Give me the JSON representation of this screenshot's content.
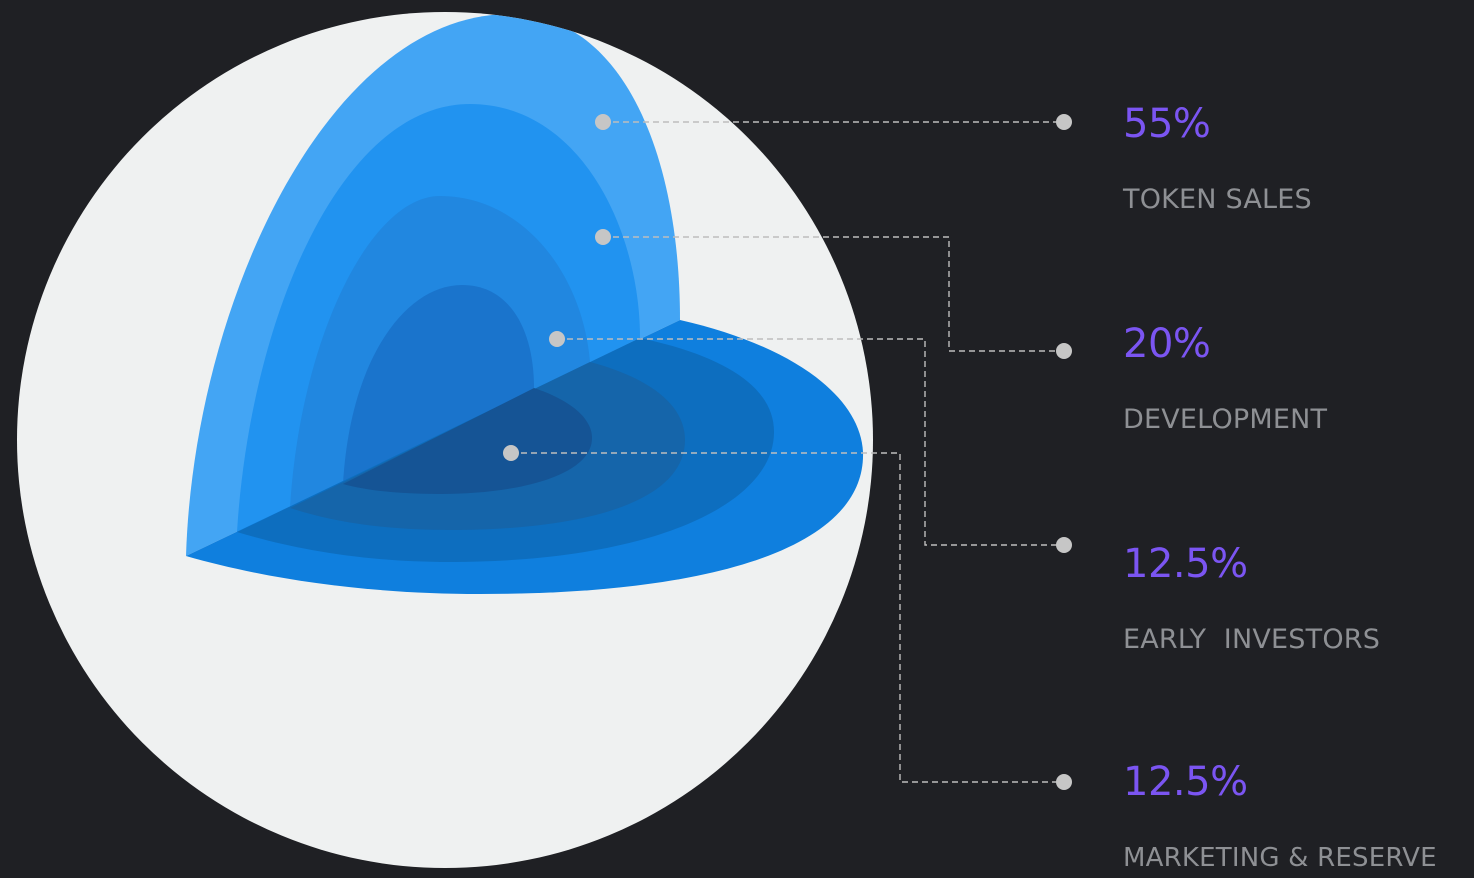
{
  "colors": {
    "background": "#1f2024",
    "accent_percent": "#7b55f2",
    "label_text": "#8e9094",
    "sphere_shell": "#eff1f1",
    "connector": "#bdbdbd"
  },
  "segments": [
    {
      "value": "55%",
      "label": "TOKEN SALES"
    },
    {
      "value": "20%",
      "label": "DEVELOPMENT"
    },
    {
      "value": "12.5%",
      "label": "EARLY  INVESTORS"
    },
    {
      "value": "12.5%",
      "label": "MARKETING & RESERVE"
    }
  ]
}
